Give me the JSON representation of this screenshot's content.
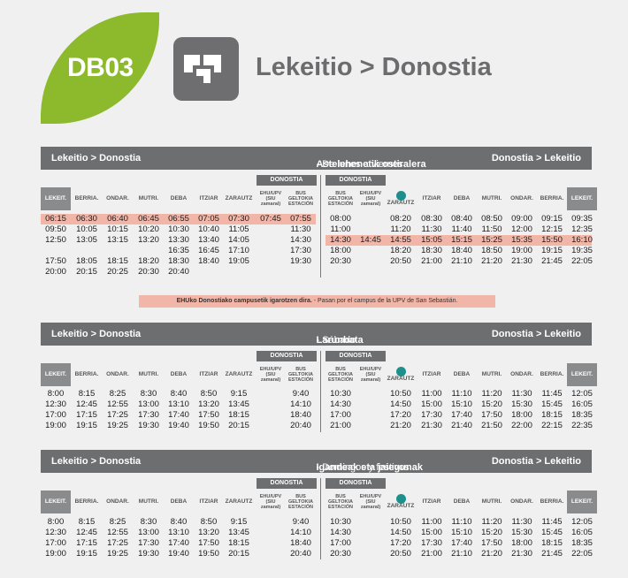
{
  "header": {
    "route_code": "DB03",
    "title": "Lekeitio > Donostia"
  },
  "note": {
    "bold": "EHUko Donostiako campusetik igarotzen dira.",
    "text": " - Pasan por el campus de la UPV de San Sebastián."
  },
  "headers": {
    "donostia": "DONOSTIA",
    "left": [
      "LEKEIT.",
      "BERRIA.",
      "ONDAR.",
      "MUTRI.",
      "DEBA",
      "ITZIAR",
      "ZARAUTZ",
      "EHU/UPV (SIU zamaral)",
      "BUS GELTOKIA ESTACIÓN"
    ],
    "right": [
      "BUS GELTOKIA ESTACIÓN",
      "EHU/UPV (SIU zamaral)",
      "ZARAUTZ",
      "ITZIAR",
      "DEBA",
      "MUTRI.",
      "ONDAR.",
      "BERRIA.",
      "LEKEIT."
    ]
  },
  "sections": [
    {
      "left_label": "Lekeitio > Donostia",
      "right_label": "Donostia > Lekeitio",
      "day": "Astelehenetik ostiralera",
      "day_es": " - De lunes a viernes",
      "left_rows": [
        [
          "06:15",
          "06:30",
          "06:40",
          "06:45",
          "06:55",
          "07:05",
          "07:30",
          "07:45",
          "07:55"
        ],
        [
          "09:50",
          "10:05",
          "10:15",
          "10:20",
          "10:30",
          "10:40",
          "11:05",
          "",
          "11:30"
        ],
        [
          "12:50",
          "13:05",
          "13:15",
          "13:20",
          "13:30",
          "13:40",
          "14:05",
          "",
          "14:30"
        ],
        [
          "",
          "",
          "",
          "",
          "16:35",
          "16:45",
          "17:10",
          "",
          "17:30"
        ],
        [
          "17:50",
          "18:05",
          "18:15",
          "18:20",
          "18:30",
          "18:40",
          "19:05",
          "",
          "19:30"
        ],
        [
          "20:00",
          "20:15",
          "20:25",
          "20:30",
          "20:40",
          "",
          "",
          "",
          ""
        ]
      ],
      "right_rows": [
        [
          "08:00",
          "",
          "08:20",
          "08:30",
          "08:40",
          "08:50",
          "09:00",
          "09:15",
          "09:35"
        ],
        [
          "11:00",
          "",
          "11:20",
          "11:30",
          "11:40",
          "11:50",
          "12:00",
          "12:15",
          "12:35"
        ],
        [
          "14:30",
          "14:45",
          "14:55",
          "15:05",
          "15:15",
          "15:25",
          "15:35",
          "15:50",
          "16:10"
        ],
        [
          "18:00",
          "",
          "18:20",
          "18:30",
          "18:40",
          "18:50",
          "19:00",
          "19:15",
          "19:35"
        ],
        [
          "20:30",
          "",
          "20:50",
          "21:00",
          "21:10",
          "21:20",
          "21:30",
          "21:45",
          "22:05"
        ]
      ],
      "left_highlight_row": 0,
      "right_highlight_row": 2
    },
    {
      "left_label": "Lekeitio > Donostia",
      "right_label": "Donostia > Lekeitio",
      "day": "Larunbata",
      "day_es": " - Sábado",
      "left_rows": [
        [
          "8:00",
          "8:15",
          "8:25",
          "8:30",
          "8:40",
          "8:50",
          "9:15",
          "",
          "9:40"
        ],
        [
          "12:30",
          "12:45",
          "12:55",
          "13:00",
          "13:10",
          "13:20",
          "13:45",
          "",
          "14:10"
        ],
        [
          "17:00",
          "17:15",
          "17:25",
          "17:30",
          "17:40",
          "17:50",
          "18:15",
          "",
          "18:40"
        ],
        [
          "19:00",
          "19:15",
          "19:25",
          "19:30",
          "19:40",
          "19:50",
          "20:15",
          "",
          "20:40"
        ]
      ],
      "right_rows": [
        [
          "10:30",
          "",
          "10:50",
          "11:00",
          "11:10",
          "11:20",
          "11:30",
          "11:45",
          "12:05"
        ],
        [
          "14:30",
          "",
          "14:50",
          "15:00",
          "15:10",
          "15:20",
          "15:30",
          "15:45",
          "16:05"
        ],
        [
          "17:00",
          "",
          "17:20",
          "17:30",
          "17:40",
          "17:50",
          "18:00",
          "18:15",
          "18:35"
        ],
        [
          "21:00",
          "",
          "21:20",
          "21:30",
          "21:40",
          "21:50",
          "22:00",
          "22:15",
          "22:35"
        ]
      ],
      "left_highlight_row": -1,
      "right_highlight_row": -1
    },
    {
      "left_label": "Lekeitio > Donostia",
      "right_label": "Donostia > Lekeitio",
      "day": "Igandeak eta jaiegunak",
      "day_es": " - Domingos y festivos",
      "left_rows": [
        [
          "8:00",
          "8:15",
          "8:25",
          "8:30",
          "8:40",
          "8:50",
          "9:15",
          "",
          "9:40"
        ],
        [
          "12:30",
          "12:45",
          "12:55",
          "13:00",
          "13:10",
          "13:20",
          "13:45",
          "",
          "14:10"
        ],
        [
          "17:00",
          "17:15",
          "17:25",
          "17:30",
          "17:40",
          "17:50",
          "18:15",
          "",
          "18:40"
        ],
        [
          "19:00",
          "19:15",
          "19:25",
          "19:30",
          "19:40",
          "19:50",
          "20:15",
          "",
          "20:40"
        ]
      ],
      "right_rows": [
        [
          "10:30",
          "",
          "10:50",
          "11:00",
          "11:10",
          "11:20",
          "11:30",
          "11:45",
          "12:05"
        ],
        [
          "14:30",
          "",
          "14:50",
          "15:00",
          "15:10",
          "15:20",
          "15:30",
          "15:45",
          "16:05"
        ],
        [
          "17:00",
          "",
          "17:20",
          "17:30",
          "17:40",
          "17:50",
          "18:00",
          "18:15",
          "18:35"
        ],
        [
          "20:30",
          "",
          "20:50",
          "21:00",
          "21:10",
          "21:20",
          "21:30",
          "21:45",
          "22:05"
        ]
      ],
      "left_highlight_row": -1,
      "right_highlight_row": -1
    }
  ],
  "colors": {
    "brand_green": "#8cba2c",
    "bar_grey": "#6d6e70",
    "highlight": "#f2b6a8",
    "phone": "#1f8f8c"
  }
}
